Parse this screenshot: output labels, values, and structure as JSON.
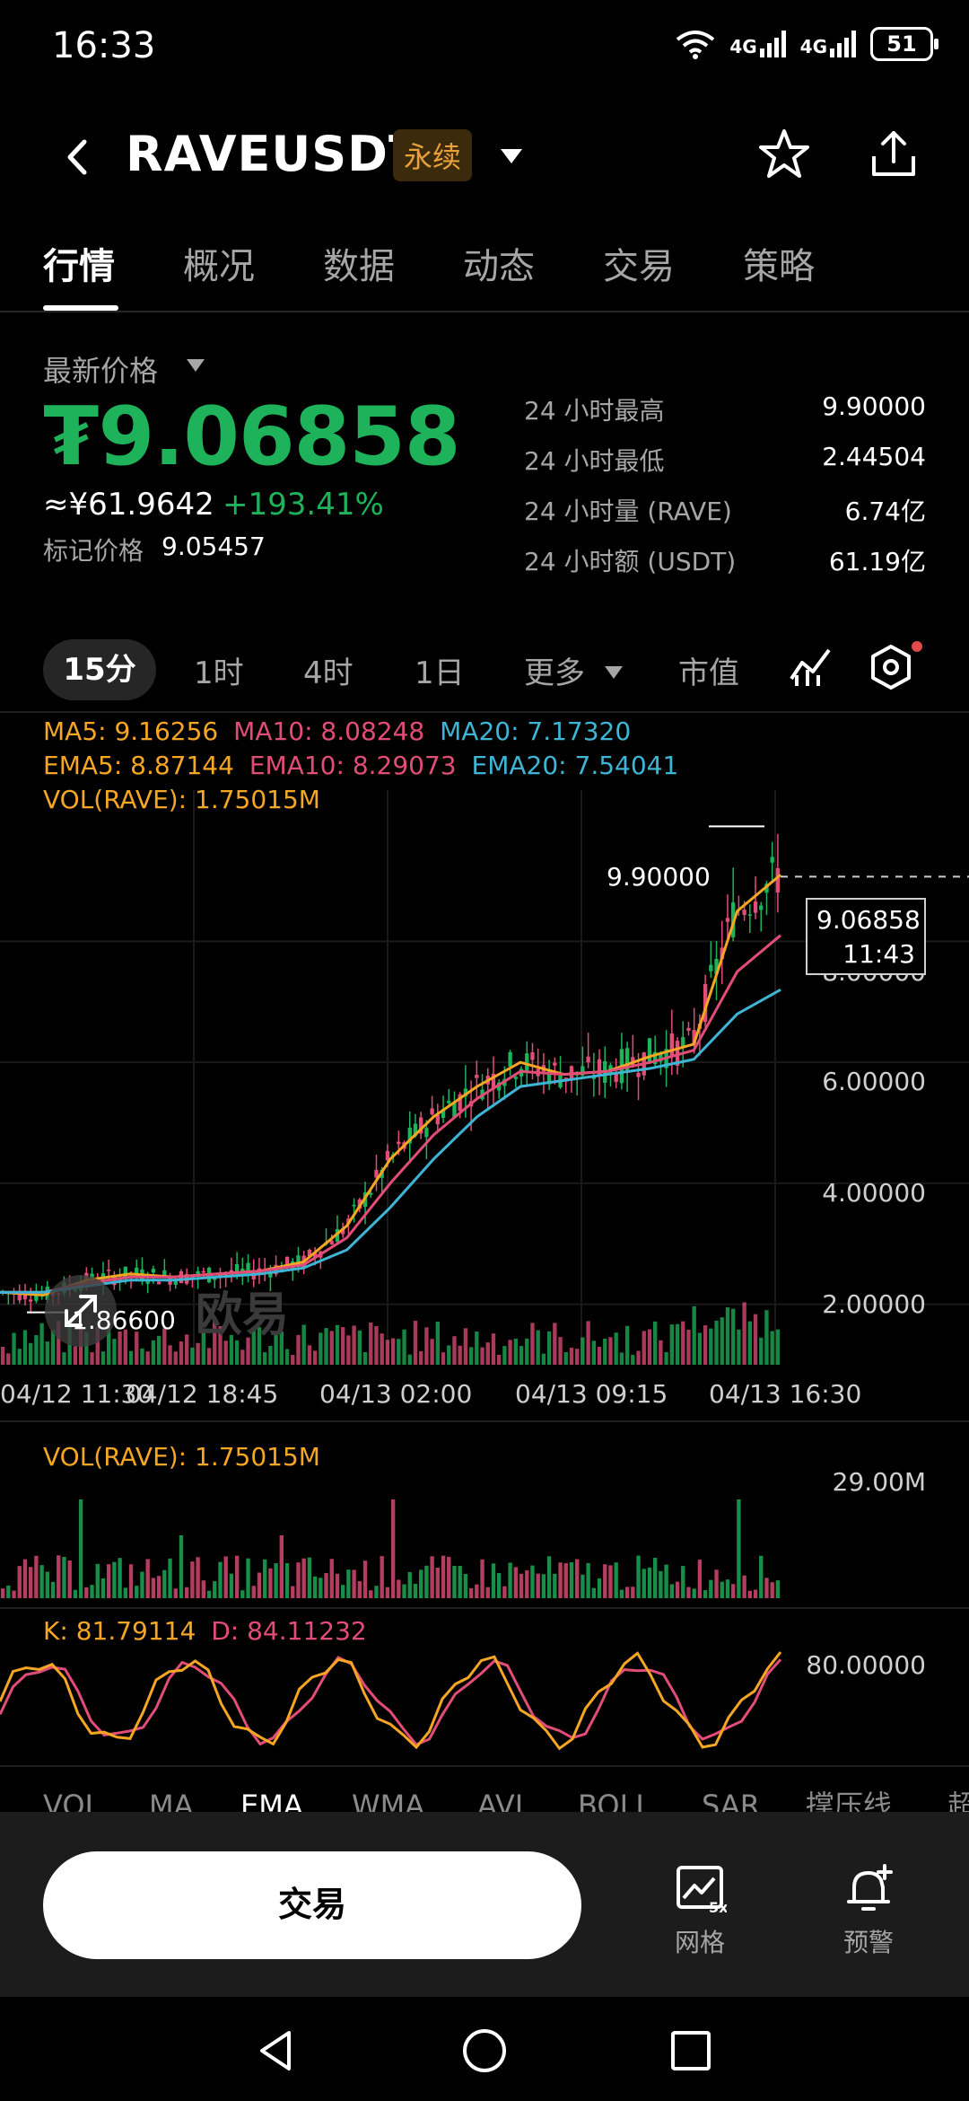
{
  "status_bar": {
    "time": "16:33",
    "net1": "4G",
    "net2": "4G",
    "battery": "51"
  },
  "header": {
    "symbol": "RAVEUSDT",
    "badge": "永续"
  },
  "tabs": [
    {
      "label": "行情",
      "active": true
    },
    {
      "label": "概况",
      "active": false
    },
    {
      "label": "数据",
      "active": false
    },
    {
      "label": "动态",
      "active": false
    },
    {
      "label": "交易",
      "active": false
    },
    {
      "label": "策略",
      "active": false
    }
  ],
  "price": {
    "latest_label": "最新价格",
    "latest": "₮9.06858",
    "cny": "≈¥61.9642",
    "change_pct": "+193.41%",
    "mark_label": "标记价格",
    "mark_value": "9.05457",
    "color_up": "#1eb35a"
  },
  "stats": [
    {
      "label": "24 小时最高",
      "value": "9.90000"
    },
    {
      "label": "24 小时最低",
      "value": "2.44504"
    },
    {
      "label": "24 小时量 (RAVE)",
      "value": "6.74亿"
    },
    {
      "label": "24 小时额 (USDT)",
      "value": "61.19亿"
    }
  ],
  "intervals": {
    "items": [
      "15分",
      "1时",
      "4时",
      "1日",
      "更多",
      "市值"
    ],
    "active": "15分"
  },
  "indicators_legend": {
    "ma5": "MA5: 9.16256",
    "ma10": "MA10: 8.08248",
    "ma20": "MA20: 7.17320",
    "ema5": "EMA5: 8.87144",
    "ema10": "EMA10: 8.29073",
    "ema20": "EMA20: 7.54041",
    "vol": "VOL(RAVE): 1.75015M"
  },
  "chart_data": {
    "type": "line",
    "title": "",
    "y_axis_ticks": [
      "8.00000",
      "6.00000",
      "4.00000",
      "2.00000"
    ],
    "high_marker": "9.90000",
    "low_marker": "1.86600",
    "current_price": "9.06858",
    "countdown": "11:43",
    "x_ticks": [
      "04/12 11:30",
      "04/12 18:45",
      "04/13 02:00",
      "04/13 09:15",
      "04/13 16:30"
    ],
    "ylim": [
      1.0,
      10.5
    ],
    "series": [
      {
        "values": [
          2.2,
          2.15,
          2.4,
          2.5,
          2.45,
          2.5,
          2.55,
          2.7,
          3.3,
          4.4,
          5.1,
          5.6,
          6.0,
          5.8,
          5.85,
          6.1,
          6.3,
          8.5,
          9.1
        ]
      },
      {
        "values": [
          2.2,
          2.2,
          2.35,
          2.45,
          2.45,
          2.5,
          2.55,
          2.65,
          3.1,
          4.0,
          4.8,
          5.4,
          5.85,
          5.8,
          5.85,
          6.0,
          6.2,
          7.5,
          8.1
        ]
      },
      {
        "values": [
          2.2,
          2.2,
          2.3,
          2.4,
          2.4,
          2.45,
          2.5,
          2.6,
          2.9,
          3.6,
          4.4,
          5.1,
          5.6,
          5.7,
          5.8,
          5.9,
          6.05,
          6.8,
          7.2
        ]
      }
    ],
    "series_colors": [
      "#f5a623",
      "#e24d78",
      "#3fb5d6"
    ]
  },
  "volume": {
    "legend": "VOL(RAVE): 1.75015M",
    "max_label": "29.00M"
  },
  "kd": {
    "k": "K: 81.79114",
    "d": "D: 84.11232",
    "level": "80.00000"
  },
  "indicator_tabs": [
    "VOL",
    "MA",
    "EMA",
    "WMA",
    "AVL",
    "BOLL",
    "SAR",
    "撑压线",
    "超"
  ],
  "bottom": {
    "trade": "交易",
    "grid": "网格",
    "alert": "预警"
  },
  "watermark": "欧易"
}
